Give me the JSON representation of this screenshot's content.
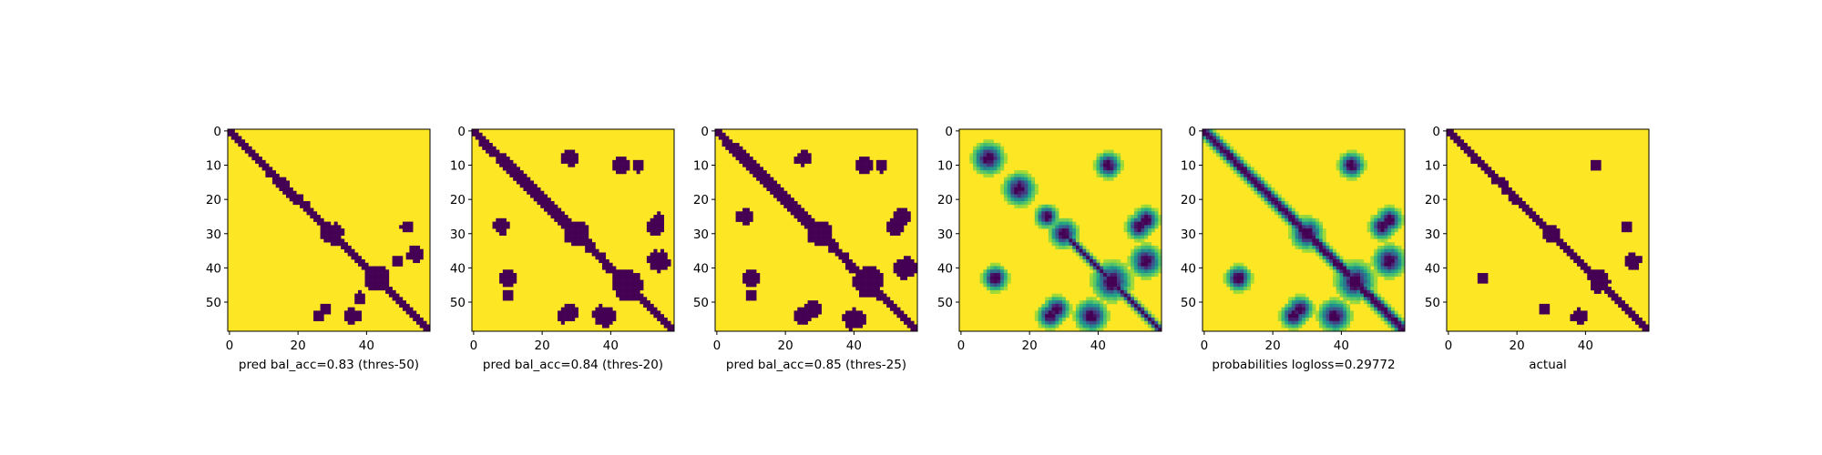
{
  "chart_data": [
    {
      "type": "heatmap",
      "variant": "binary",
      "xlabel": "pred bal_acc=0.83 (thres-50)",
      "matrix_size": 59,
      "xticks": [
        0,
        20,
        40
      ],
      "yticks": [
        0,
        10,
        20,
        30,
        40,
        50
      ],
      "xlim": [
        0,
        58
      ],
      "ylim": [
        58,
        0
      ],
      "colormap": "viridis",
      "colors": {
        "low": "#440154",
        "high": "#fde725"
      },
      "contact_bands": [
        {
          "start": 0,
          "end": 58,
          "offset": 0,
          "width": 1.2
        },
        {
          "start": 12,
          "end": 22,
          "offset": 0,
          "width": 1.6
        }
      ],
      "blobs": [
        {
          "x": 30,
          "y": 30,
          "r": 2.5
        },
        {
          "x": 43,
          "y": 43,
          "r": 3.0
        },
        {
          "x": 52,
          "y": 28,
          "r": 1.5
        },
        {
          "x": 28,
          "y": 52,
          "r": 1.5
        },
        {
          "x": 54,
          "y": 36,
          "r": 1.8
        },
        {
          "x": 36,
          "y": 54,
          "r": 1.8
        },
        {
          "x": 49,
          "y": 38,
          "r": 1.5
        },
        {
          "x": 38,
          "y": 49,
          "r": 1.5
        },
        {
          "x": 26,
          "y": 54,
          "r": 1.2
        }
      ]
    },
    {
      "type": "heatmap",
      "variant": "binary",
      "xlabel": "pred bal_acc=0.84 (thres-20)",
      "matrix_size": 59,
      "xticks": [
        0,
        20,
        40
      ],
      "yticks": [
        0,
        10,
        20,
        30,
        40,
        50
      ],
      "xlim": [
        0,
        58
      ],
      "ylim": [
        58,
        0
      ],
      "colormap": "viridis",
      "colors": {
        "low": "#440154",
        "high": "#fde725"
      },
      "contact_bands": [
        {
          "start": 0,
          "end": 58,
          "offset": 0,
          "width": 1.5
        },
        {
          "start": 8,
          "end": 28,
          "offset": 0,
          "width": 2.0
        }
      ],
      "blobs": [
        {
          "x": 30,
          "y": 30,
          "r": 3.0
        },
        {
          "x": 45,
          "y": 45,
          "r": 3.5
        },
        {
          "x": 53,
          "y": 28,
          "r": 2.0
        },
        {
          "x": 28,
          "y": 53,
          "r": 2.0
        },
        {
          "x": 54,
          "y": 38,
          "r": 2.5
        },
        {
          "x": 38,
          "y": 54,
          "r": 2.5
        },
        {
          "x": 10,
          "y": 43,
          "r": 2.0
        },
        {
          "x": 43,
          "y": 10,
          "r": 2.0
        },
        {
          "x": 28,
          "y": 8,
          "r": 1.8
        },
        {
          "x": 8,
          "y": 28,
          "r": 1.8
        },
        {
          "x": 48,
          "y": 10,
          "r": 1.5
        },
        {
          "x": 10,
          "y": 48,
          "r": 1.5
        },
        {
          "x": 26,
          "y": 54,
          "r": 1.5
        },
        {
          "x": 54,
          "y": 26,
          "r": 1.5
        }
      ]
    },
    {
      "type": "heatmap",
      "variant": "binary",
      "xlabel": "pred bal_acc=0.85 (thres-25)",
      "matrix_size": 59,
      "xticks": [
        0,
        20,
        40
      ],
      "yticks": [
        0,
        10,
        20,
        30,
        40,
        50
      ],
      "xlim": [
        0,
        58
      ],
      "ylim": [
        58,
        0
      ],
      "colormap": "viridis",
      "colors": {
        "low": "#440154",
        "high": "#fde725"
      },
      "contact_bands": [
        {
          "start": 0,
          "end": 58,
          "offset": 0,
          "width": 1.5
        },
        {
          "start": 5,
          "end": 30,
          "offset": 0,
          "width": 2.0
        }
      ],
      "blobs": [
        {
          "x": 30,
          "y": 30,
          "r": 3.0
        },
        {
          "x": 44,
          "y": 44,
          "r": 3.5
        },
        {
          "x": 52,
          "y": 28,
          "r": 2.0
        },
        {
          "x": 28,
          "y": 52,
          "r": 2.0
        },
        {
          "x": 55,
          "y": 40,
          "r": 2.5
        },
        {
          "x": 40,
          "y": 55,
          "r": 2.5
        },
        {
          "x": 10,
          "y": 43,
          "r": 2.0
        },
        {
          "x": 43,
          "y": 10,
          "r": 2.0
        },
        {
          "x": 25,
          "y": 8,
          "r": 1.8
        },
        {
          "x": 8,
          "y": 25,
          "r": 1.8
        },
        {
          "x": 48,
          "y": 10,
          "r": 1.5
        },
        {
          "x": 10,
          "y": 48,
          "r": 1.5
        },
        {
          "x": 25,
          "y": 54,
          "r": 2.0
        },
        {
          "x": 54,
          "y": 25,
          "r": 2.0
        }
      ]
    },
    {
      "type": "heatmap",
      "variant": "continuous",
      "xlabel": "",
      "matrix_size": 59,
      "xticks": [
        0,
        20,
        40
      ],
      "yticks": [
        0,
        10,
        20,
        30,
        40,
        50
      ],
      "xlim": [
        0,
        58
      ],
      "ylim": [
        58,
        0
      ],
      "colormap": "viridis",
      "diagonal": false,
      "contact_bands": [
        {
          "start": 30,
          "end": 58,
          "offset": 0,
          "width": 1.0
        }
      ],
      "blobs": [
        {
          "x": 8,
          "y": 8,
          "r": 2.5
        },
        {
          "x": 17,
          "y": 17,
          "r": 2.5
        },
        {
          "x": 25,
          "y": 25,
          "r": 1.8
        },
        {
          "x": 30,
          "y": 30,
          "r": 2.2
        },
        {
          "x": 44,
          "y": 44,
          "r": 3.0
        },
        {
          "x": 52,
          "y": 28,
          "r": 2.0
        },
        {
          "x": 28,
          "y": 52,
          "r": 2.0
        },
        {
          "x": 54,
          "y": 38,
          "r": 2.5
        },
        {
          "x": 38,
          "y": 54,
          "r": 2.5
        },
        {
          "x": 10,
          "y": 43,
          "r": 2.0
        },
        {
          "x": 43,
          "y": 10,
          "r": 2.0
        },
        {
          "x": 26,
          "y": 54,
          "r": 2.0
        },
        {
          "x": 54,
          "y": 26,
          "r": 2.0
        }
      ]
    },
    {
      "type": "heatmap",
      "variant": "continuous",
      "xlabel": "probabilities logloss=0.29772",
      "matrix_size": 59,
      "xticks": [
        0,
        20,
        40
      ],
      "yticks": [
        0,
        10,
        20,
        30,
        40,
        50
      ],
      "xlim": [
        0,
        58
      ],
      "ylim": [
        58,
        0
      ],
      "colormap": "viridis",
      "diagonal": true,
      "contact_bands": [
        {
          "start": 0,
          "end": 58,
          "offset": 0,
          "width": 1.5
        }
      ],
      "blobs": [
        {
          "x": 30,
          "y": 30,
          "r": 2.5
        },
        {
          "x": 44,
          "y": 44,
          "r": 3.0
        },
        {
          "x": 52,
          "y": 28,
          "r": 2.0
        },
        {
          "x": 28,
          "y": 52,
          "r": 2.0
        },
        {
          "x": 54,
          "y": 38,
          "r": 2.5
        },
        {
          "x": 38,
          "y": 54,
          "r": 2.5
        },
        {
          "x": 10,
          "y": 43,
          "r": 2.0
        },
        {
          "x": 43,
          "y": 10,
          "r": 2.0
        },
        {
          "x": 26,
          "y": 54,
          "r": 2.0
        },
        {
          "x": 54,
          "y": 26,
          "r": 2.0
        }
      ]
    },
    {
      "type": "heatmap",
      "variant": "binary",
      "xlabel": "actual",
      "matrix_size": 59,
      "xticks": [
        0,
        20,
        40
      ],
      "yticks": [
        0,
        10,
        20,
        30,
        40,
        50
      ],
      "xlim": [
        0,
        58
      ],
      "ylim": [
        58,
        0
      ],
      "colormap": "viridis",
      "colors": {
        "low": "#440154",
        "high": "#fde725"
      },
      "contact_bands": [
        {
          "start": 0,
          "end": 58,
          "offset": 0,
          "width": 1.2
        },
        {
          "start": 8,
          "end": 20,
          "offset": 0,
          "width": 1.5
        }
      ],
      "blobs": [
        {
          "x": 30,
          "y": 30,
          "r": 2.0
        },
        {
          "x": 44,
          "y": 44,
          "r": 2.5
        },
        {
          "x": 52,
          "y": 28,
          "r": 1.2
        },
        {
          "x": 28,
          "y": 52,
          "r": 1.2
        },
        {
          "x": 54,
          "y": 38,
          "r": 1.8
        },
        {
          "x": 38,
          "y": 54,
          "r": 1.8
        },
        {
          "x": 10,
          "y": 43,
          "r": 1.2
        },
        {
          "x": 43,
          "y": 10,
          "r": 1.2
        }
      ]
    }
  ]
}
